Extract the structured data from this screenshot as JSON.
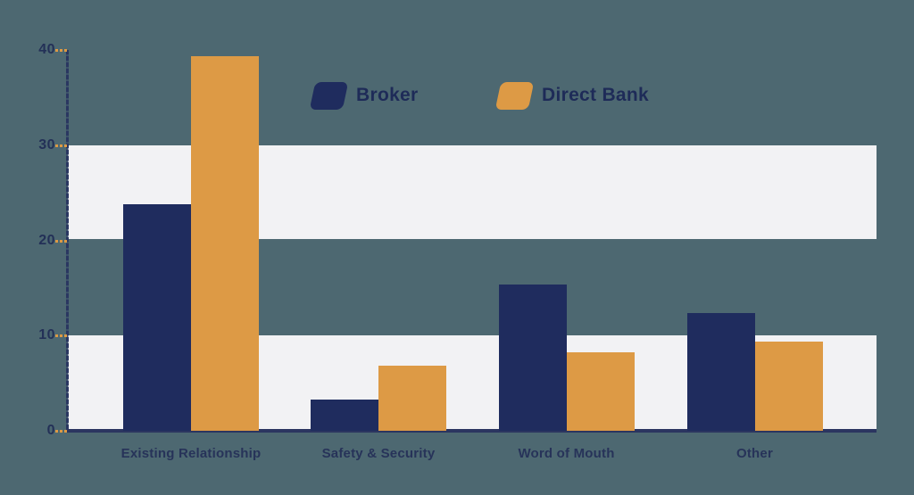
{
  "colors": {
    "background": "#4d6871",
    "band": "#f2f2f4",
    "axis_line": "#2b3560",
    "y_axis_dashed": "#2a3761",
    "tick_dash": "#dd9a45",
    "tick_label": "#233057",
    "category_label": "#273359",
    "legend_text": "#1e2b58"
  },
  "y_axis": {
    "ticks": [
      "0",
      "10",
      "20",
      "30",
      "40"
    ],
    "tick_values": [
      0,
      10,
      20,
      30,
      40
    ]
  },
  "legend": {
    "items": [
      {
        "label": "Broker",
        "color": "#1f2c5e"
      },
      {
        "label": "Direct Bank",
        "color": "#dd9a45"
      }
    ]
  },
  "chart_data": {
    "type": "bar",
    "categories": [
      "Existing Relationship",
      "Safety & Security",
      "Word of Mouth",
      "Other"
    ],
    "series": [
      {
        "name": "Broker",
        "color": "#1f2c5e",
        "values": [
          23.8,
          3.3,
          15.4,
          12.4
        ]
      },
      {
        "name": "Direct Bank",
        "color": "#dd9a45",
        "values": [
          39.3,
          6.8,
          8.2,
          9.4
        ]
      }
    ],
    "title": "",
    "xlabel": "",
    "ylabel": "",
    "ylim": [
      0,
      40
    ],
    "grid": false,
    "bands": [
      [
        0,
        10
      ],
      [
        20,
        30
      ]
    ],
    "legend_position": "top-center"
  }
}
